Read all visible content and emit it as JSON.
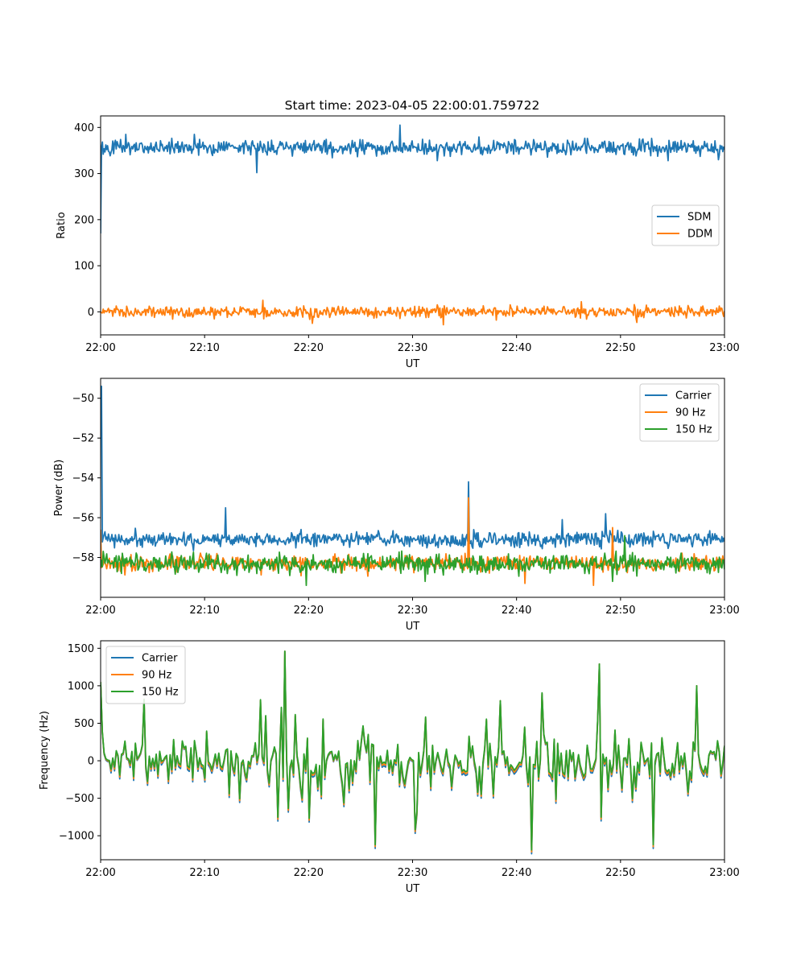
{
  "figure": {
    "title": "Start time: 2023-04-05 22:00:01.759722"
  },
  "colors": {
    "series_blue": "#1f77b4",
    "series_orange": "#ff7f0e",
    "series_green": "#2ca02c"
  },
  "chart_data": [
    {
      "type": "line",
      "title": "Start time: 2023-04-05 22:00:01.759722",
      "xlabel": "UT",
      "ylabel": "Ratio",
      "xlim": [
        "22:00",
        "23:00"
      ],
      "x_ticks": [
        "22:00",
        "22:10",
        "22:20",
        "22:30",
        "22:40",
        "22:50",
        "23:00"
      ],
      "ylim": [
        -50,
        425
      ],
      "y_ticks": [
        0,
        100,
        200,
        300,
        400
      ],
      "y_tick_labels": [
        "0",
        "100",
        "200",
        "300",
        "400"
      ],
      "grid": false,
      "legend": "center-right",
      "sample_count": 720,
      "series": [
        {
          "name": "SDM",
          "color": "#1f77b4",
          "mean": 357,
          "noise": 12,
          "start": 170,
          "spikes": [
            [
              0.01,
              352
            ],
            [
              0.04,
              385
            ],
            [
              0.15,
              385
            ],
            [
              0.25,
              302
            ],
            [
              0.48,
              405
            ],
            [
              0.54,
              328
            ],
            [
              0.91,
              328
            ],
            [
              0.99,
              330
            ],
            [
              1.0,
              352
            ]
          ]
        },
        {
          "name": "DDM",
          "color": "#ff7f0e",
          "mean": 0,
          "noise": 9,
          "spikes": [
            [
              0.26,
              25
            ],
            [
              0.34,
              -25
            ],
            [
              0.55,
              -28
            ],
            [
              0.77,
              22
            ],
            [
              0.86,
              -23
            ],
            [
              1.0,
              2
            ]
          ]
        }
      ]
    },
    {
      "type": "line",
      "xlabel": "UT",
      "ylabel": "Power (dB)",
      "xlim": [
        "22:00",
        "23:00"
      ],
      "x_ticks": [
        "22:00",
        "22:10",
        "22:20",
        "22:30",
        "22:40",
        "22:50",
        "23:00"
      ],
      "ylim": [
        -60.0,
        -49.0
      ],
      "y_ticks": [
        -58,
        -56,
        -54,
        -52,
        -50
      ],
      "y_tick_labels": [
        "−58",
        "−56",
        "−54",
        "−52",
        "−50"
      ],
      "grid": false,
      "legend": "top-right",
      "sample_count": 720,
      "series": [
        {
          "name": "Carrier",
          "color": "#1f77b4",
          "mean": -57.1,
          "noise": 0.28,
          "start": -49.4,
          "spikes": [
            [
              0.002,
              -49.4
            ],
            [
              0.004,
              -57.0
            ],
            [
              0.2,
              -55.5
            ],
            [
              0.59,
              -54.2
            ],
            [
              0.81,
              -55.8
            ],
            [
              0.74,
              -56.1
            ],
            [
              1.0,
              -57.2
            ]
          ]
        },
        {
          "name": "90 Hz",
          "color": "#ff7f0e",
          "mean": -58.3,
          "noise": 0.3,
          "start": -56.6,
          "spikes": [
            [
              0.59,
              -55.0
            ],
            [
              0.68,
              -59.3
            ],
            [
              0.79,
              -59.4
            ],
            [
              0.82,
              -56.5
            ],
            [
              1.0,
              -58.3
            ]
          ]
        },
        {
          "name": "150 Hz",
          "color": "#2ca02c",
          "mean": -58.3,
          "noise": 0.35,
          "start": -58.5,
          "spikes": [
            [
              0.33,
              -59.4
            ],
            [
              0.52,
              -59.2
            ],
            [
              0.82,
              -59.2
            ],
            [
              0.84,
              -56.9
            ],
            [
              1.0,
              -58.6
            ]
          ]
        }
      ]
    },
    {
      "type": "line",
      "xlabel": "UT",
      "ylabel": "Frequency (Hz)",
      "xlim": [
        "22:00",
        "23:00"
      ],
      "x_ticks": [
        "22:00",
        "22:10",
        "22:20",
        "22:30",
        "22:40",
        "22:50",
        "23:00"
      ],
      "ylim": [
        -1320,
        1600
      ],
      "y_ticks": [
        -1000,
        -500,
        0,
        500,
        1000,
        1500
      ],
      "y_tick_labels": [
        "−1000",
        "−500",
        "0",
        "500",
        "1000",
        "1500"
      ],
      "grid": false,
      "legend": "top-left",
      "sample_count": 360,
      "series": [
        {
          "name": "Carrier",
          "color": "#1f77b4",
          "offset": -50
        },
        {
          "name": "90 Hz",
          "color": "#ff7f0e",
          "offset": -25
        },
        {
          "name": "150 Hz",
          "color": "#2ca02c",
          "offset": 0,
          "spikes": [
            [
              0.0,
              1050
            ],
            [
              0.07,
              820
            ],
            [
              0.295,
              1460
            ],
            [
              0.44,
              -1120
            ],
            [
              0.64,
              800
            ],
            [
              0.69,
              -1190
            ],
            [
              0.8,
              1290
            ],
            [
              0.885,
              -1120
            ],
            [
              0.955,
              1000
            ],
            [
              1.0,
              200
            ]
          ]
        }
      ]
    }
  ]
}
